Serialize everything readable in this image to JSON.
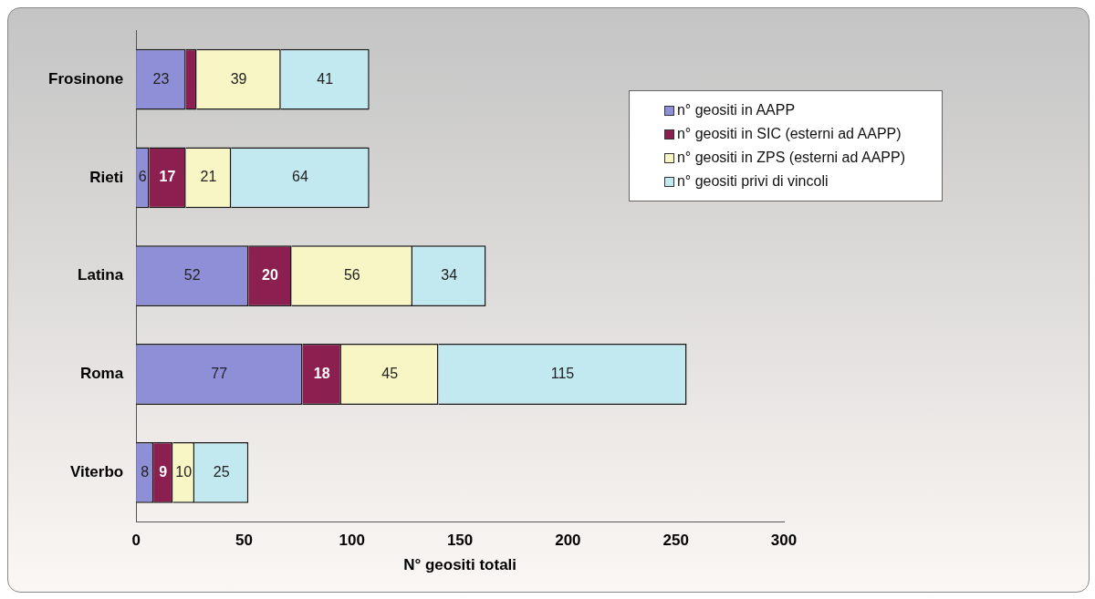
{
  "chart_data": {
    "type": "bar",
    "orientation": "horizontal",
    "stacked": true,
    "xlabel": "N° geositi totali",
    "categories": [
      "Frosinone",
      "Rieti",
      "Latina",
      "Roma",
      "Viterbo"
    ],
    "series": [
      {
        "name": "n° geositi in AAPP",
        "color": "#8f8fd8",
        "values": [
          23,
          6,
          52,
          77,
          8
        ],
        "value_labels": [
          "23",
          "6",
          "52",
          "77",
          "8"
        ]
      },
      {
        "name": "n° geositi in SIC (esterni ad AAPP)",
        "color": "#8a1f50",
        "values": [
          5,
          17,
          20,
          18,
          9
        ],
        "value_labels": [
          null,
          "17",
          "20",
          "18",
          "9"
        ]
      },
      {
        "name": "n° geositi in ZPS (esterni ad AAPP)",
        "color": "#f8f6c4",
        "values": [
          39,
          21,
          56,
          45,
          10
        ],
        "value_labels": [
          "39",
          "21",
          "56",
          "45",
          "10"
        ]
      },
      {
        "name": "n° geositi privi di vincoli",
        "color": "#c2e8f0",
        "values": [
          41,
          64,
          34,
          115,
          25
        ],
        "value_labels": [
          "41",
          "64",
          "34",
          "115",
          "25"
        ]
      }
    ],
    "xlim": [
      0,
      300
    ],
    "xticks": [
      0,
      50,
      100,
      150,
      200,
      250,
      300
    ],
    "grid": false,
    "legend": "top right"
  }
}
